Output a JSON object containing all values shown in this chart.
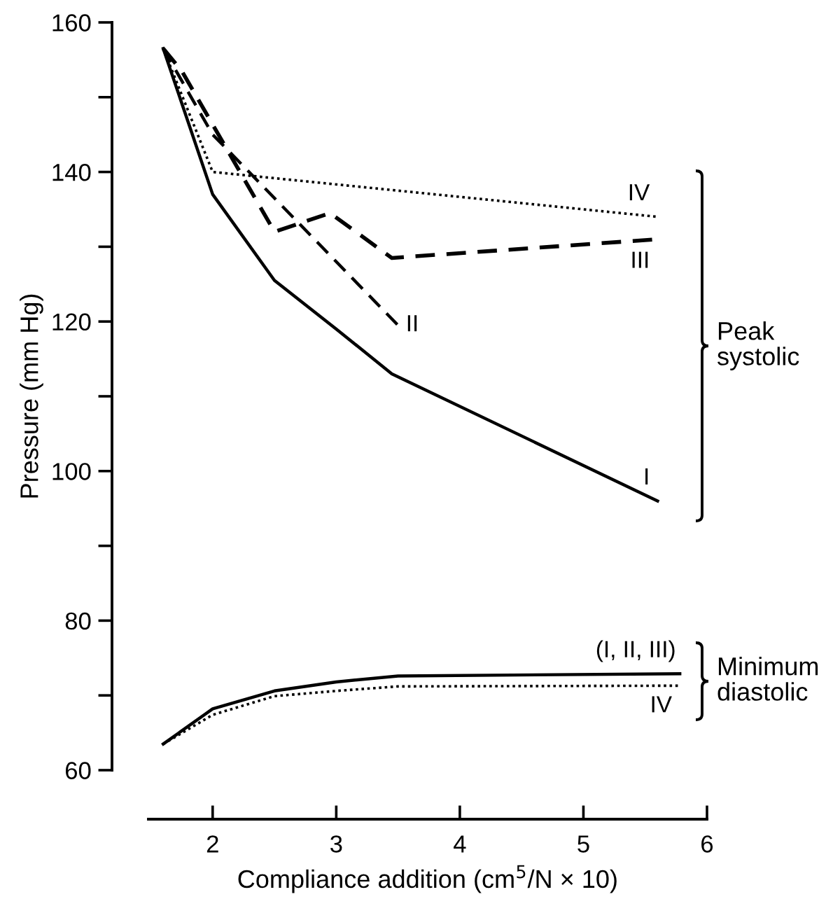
{
  "chart_data": {
    "type": "line",
    "xlabel": "Compliance addition (cm$^{5}$/N × 10)",
    "ylabel": "Pressure (mm Hg)",
    "xlim": [
      1.48,
      6
    ],
    "xticks": [
      2,
      3,
      4,
      5,
      6
    ],
    "ylim": [
      60,
      160
    ],
    "yticks": [
      60,
      80,
      100,
      120,
      140,
      160
    ],
    "grid": false,
    "legend": false,
    "marker": "none",
    "series": [
      {
        "name": "I",
        "color": "#000000",
        "line_style": "solid",
        "x": [
          1.6,
          2,
          2.5,
          3,
          3.45,
          5.6
        ],
        "values": [
          156.5,
          137,
          125.5,
          119,
          113,
          96
        ]
      },
      {
        "name": "II",
        "color": "#000000",
        "line_style": "dashed",
        "x": [
          1.6,
          2,
          3.5
        ],
        "values": [
          156.5,
          145,
          119.5
        ]
      },
      {
        "name": "III",
        "color": "#000000",
        "line_style": "dashed",
        "x": [
          1.6,
          1.75,
          2.5,
          2.95,
          3.45,
          5.6
        ],
        "values": [
          156.5,
          153.5,
          132,
          134.5,
          128.5,
          131
        ]
      },
      {
        "name": "IV",
        "color": "#000000",
        "line_style": "dotted",
        "x": [
          1.6,
          2,
          5.6
        ],
        "values": [
          156.5,
          140,
          134
        ]
      },
      {
        "name": "(I, II, III)",
        "color": "#000000",
        "line_style": "solid",
        "x": [
          1.6,
          2,
          2.5,
          3,
          3.5,
          5.78
        ],
        "values": [
          63.5,
          68.2,
          70.6,
          71.8,
          72.6,
          72.9
        ]
      },
      {
        "name": "IV",
        "color": "#000000",
        "line_style": "dotted",
        "x": [
          1.6,
          2,
          2.5,
          3,
          3.5,
          5.78
        ],
        "values": [
          63.5,
          67.4,
          69.9,
          70.6,
          71.2,
          71.3
        ]
      }
    ],
    "annotations": [
      "Peak\nsystolic",
      "Minimum\ndiastolic"
    ]
  }
}
